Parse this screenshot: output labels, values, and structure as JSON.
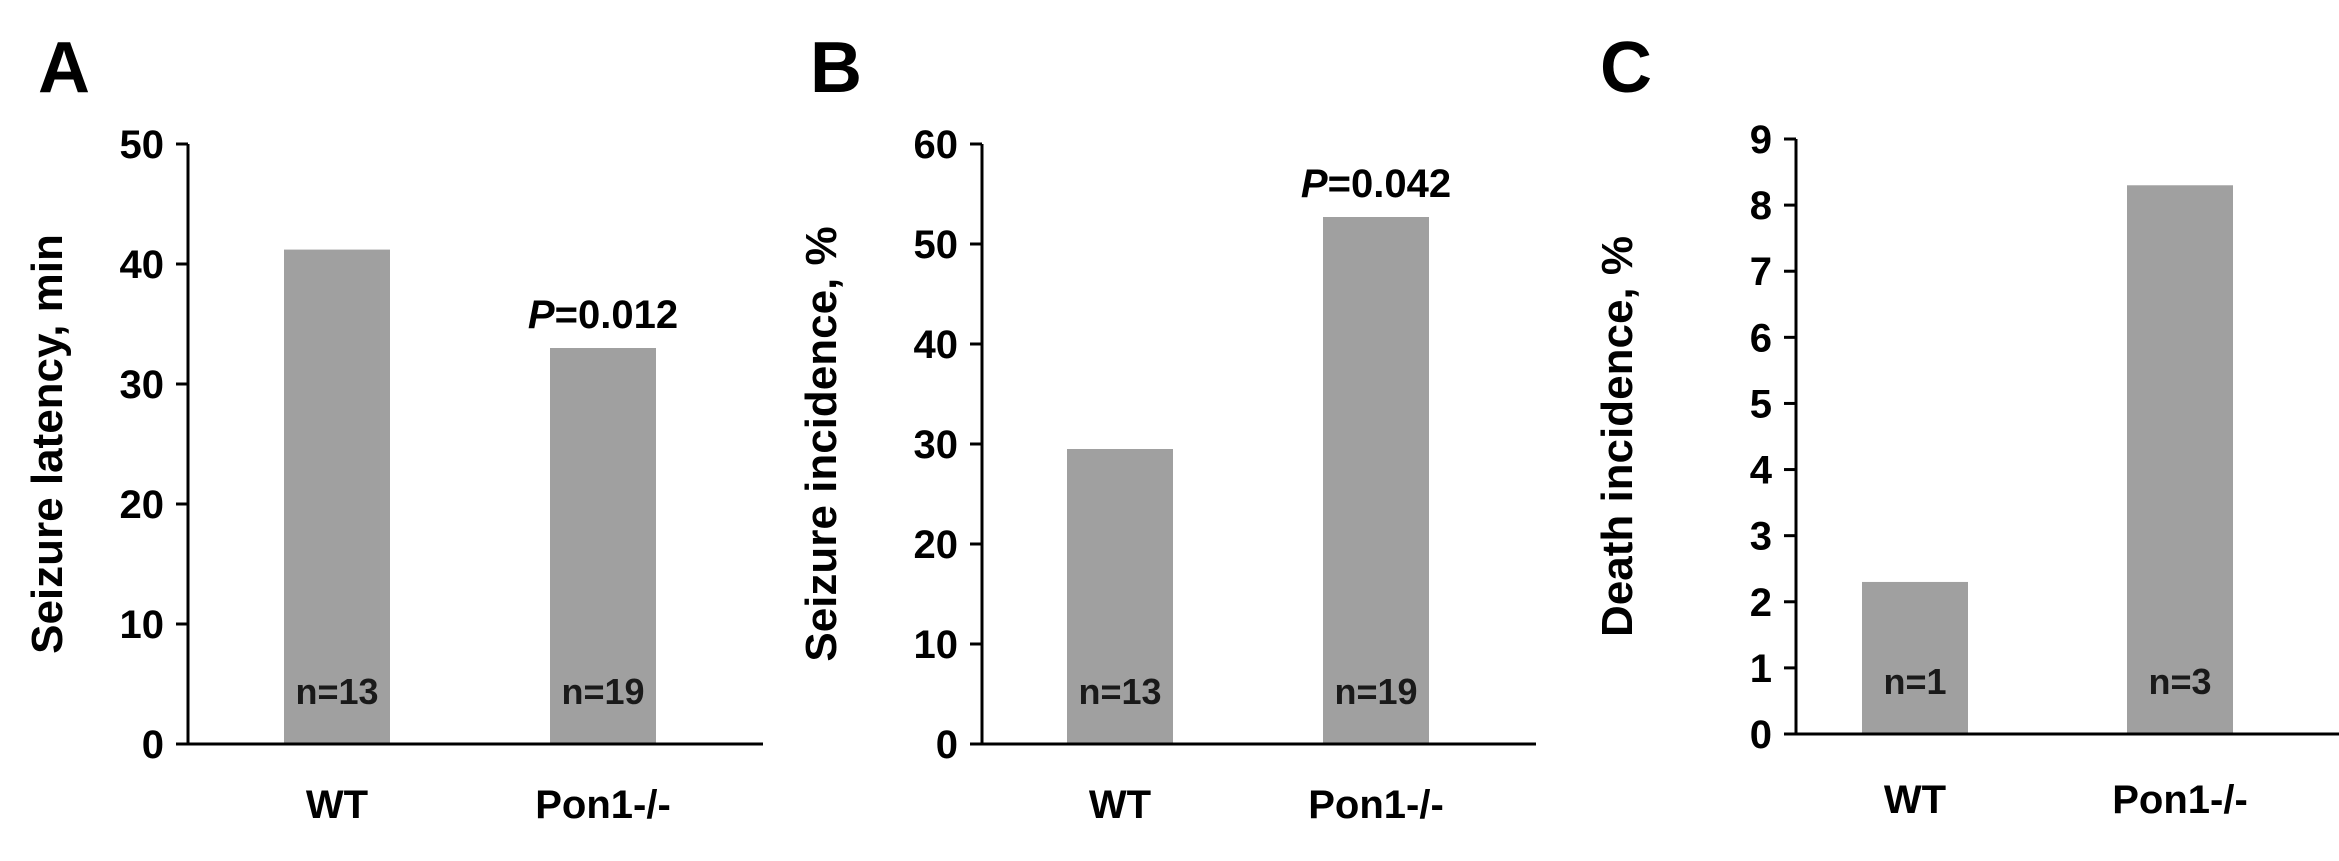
{
  "chart_data": [
    {
      "type": "bar",
      "panel_label": "A",
      "categories": [
        "WT",
        "Pon1-/-"
      ],
      "values": [
        41.2,
        33.0
      ],
      "ylabel": "Seizure latency, min",
      "ylim": [
        0,
        50
      ],
      "yticks": [
        "0",
        "10",
        "20",
        "30",
        "40",
        "50"
      ],
      "n_labels": [
        "n=13",
        "n=19"
      ],
      "p_value": {
        "italic": "P",
        "text": "=0.012",
        "bar_index": 1
      },
      "bar_color": "#a0a0a0",
      "grid": false
    },
    {
      "type": "bar",
      "panel_label": "B",
      "categories": [
        "WT",
        "Pon1-/-"
      ],
      "values": [
        29.5,
        52.7
      ],
      "ylabel": "Seizure incidence, %",
      "ylim": [
        0,
        60
      ],
      "yticks": [
        "0",
        "10",
        "20",
        "30",
        "40",
        "50",
        "60"
      ],
      "n_labels": [
        "n=13",
        "n=19"
      ],
      "p_value": {
        "italic": "P",
        "text": "=0.042",
        "bar_index": 1
      },
      "bar_color": "#a0a0a0",
      "grid": false
    },
    {
      "type": "bar",
      "panel_label": "C",
      "categories": [
        "WT",
        "Pon1-/-"
      ],
      "values": [
        2.3,
        8.3
      ],
      "ylabel": "Death incidence, %",
      "ylim": [
        0,
        9
      ],
      "yticks": [
        "0",
        "1",
        "2",
        "3",
        "4",
        "5",
        "6",
        "7",
        "8",
        "9"
      ],
      "n_labels": [
        "n=1",
        "n=3"
      ],
      "p_value": null,
      "bar_color": "#a0a0a0",
      "grid": false
    }
  ]
}
